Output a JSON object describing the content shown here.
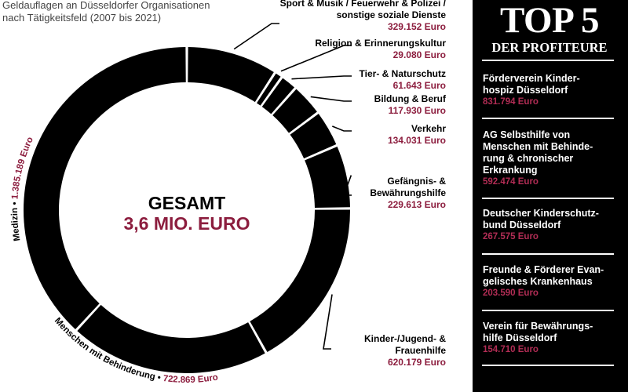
{
  "subtitle": [
    "Geldauflagen an Düsseldorfer Organisationen",
    "nach Tätigkeitsfeld (2007 bis 2021)"
  ],
  "colors": {
    "accent": "#8c1d3e",
    "ring": "#000000",
    "sidebar_bg": "#000000",
    "sidebar_value": "#b22d55"
  },
  "chart_data": {
    "type": "pie",
    "style": "donut",
    "center_label": "GESAMT",
    "center_value": "3,6 MIO. EURO",
    "slices": [
      {
        "name_lines": [
          "Sport & Musik / Feuerwehr & Polizei /",
          "sonstige soziale Dienste"
        ],
        "value_label": "329.152 Euro",
        "value": 329152
      },
      {
        "name_lines": [
          "Religion & Erinnerungskultur"
        ],
        "value_label": "29.080 Euro",
        "value": 29080
      },
      {
        "name_lines": [
          "Tier- & Naturschutz"
        ],
        "value_label": "61.643 Euro",
        "value": 61643
      },
      {
        "name_lines": [
          "Bildung & Beruf"
        ],
        "value_label": "117.930 Euro",
        "value": 117930
      },
      {
        "name_lines": [
          "Verkehr"
        ],
        "value_label": "134.031 Euro",
        "value": 134031
      },
      {
        "name_lines": [
          "Gefängnis- &",
          "Bewährungshilfe"
        ],
        "value_label": "229.613 Euro",
        "value": 229613
      },
      {
        "name_lines": [
          "Kinder-/Jugend- &",
          "Frauenhilfe"
        ],
        "value_label": "620.179 Euro",
        "value": 620179
      },
      {
        "name": "Menschen mit Behinderung",
        "value_label": "722.869 Euro",
        "value": 722869
      },
      {
        "name": "Medizin",
        "value_label": "1.385.189 Euro",
        "value": 1385189
      }
    ]
  },
  "sidebar": {
    "title": "TOP 5",
    "subtitle": "DER PROFITEURE",
    "entries": [
      {
        "name": [
          "Förderverein Kinder-",
          "hospiz Düsseldorf"
        ],
        "value": "831.794 Euro"
      },
      {
        "name": [
          "AG Selbsthilfe von",
          "Menschen mit Behinde-",
          "rung & chronischer",
          "Erkrankung"
        ],
        "value": "592.474 Euro"
      },
      {
        "name": [
          "Deutscher Kinderschutz-",
          "bund Düsseldorf"
        ],
        "value": "267.575 Euro"
      },
      {
        "name": [
          "Freunde & Förderer Evan-",
          "gelisches Krankenhaus"
        ],
        "value": "203.590 Euro"
      },
      {
        "name": [
          "Verein für Bewährungs-",
          "hilfe Düsseldorf"
        ],
        "value": "154.710 Euro"
      }
    ]
  }
}
